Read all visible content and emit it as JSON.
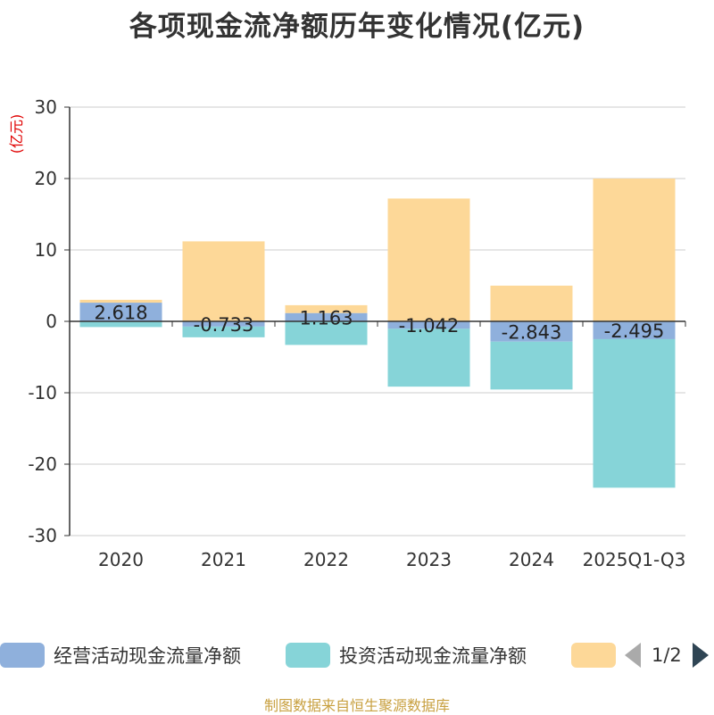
{
  "title": "各项现金流净额历年变化情况(亿元)",
  "unit_label": "(亿元)",
  "footer": "制图数据来自恒生聚源数据库",
  "legend": {
    "items": [
      {
        "name": "经营活动现金流量净额",
        "color": "#8fb0dc"
      },
      {
        "name": "投资活动现金流量净额",
        "color": "#86d4d8"
      },
      {
        "name": "",
        "color": "#fdd898"
      }
    ],
    "page": "1/2"
  },
  "chart_data": {
    "type": "bar",
    "stacked": true,
    "title": "各项现金流净额历年变化情况(亿元)",
    "ylabel": "(亿元)",
    "ylim": [
      -30,
      30
    ],
    "yticks": [
      30,
      20,
      10,
      0,
      -10,
      -20,
      -30
    ],
    "grid": true,
    "categories": [
      "2020",
      "2021",
      "2022",
      "2023",
      "2024",
      "2025Q1-Q3"
    ],
    "series": [
      {
        "name": "经营活动现金流量净额",
        "color": "#8fb0dc",
        "values": [
          2.618,
          -0.733,
          1.163,
          -1.042,
          -2.843,
          -2.495
        ],
        "labels": [
          "2.618",
          "-0.733",
          "1.163",
          "-1.042",
          "-2.843",
          "-2.495"
        ]
      },
      {
        "name": "投资活动现金流量净额",
        "color": "#86d4d8",
        "values": [
          -0.8,
          -1.5,
          -3.3,
          -8.1,
          -6.7,
          -20.8
        ]
      },
      {
        "name": "",
        "color": "#fdd898",
        "values": [
          0.4,
          11.2,
          1.1,
          17.2,
          5.0,
          20.0
        ]
      }
    ]
  }
}
